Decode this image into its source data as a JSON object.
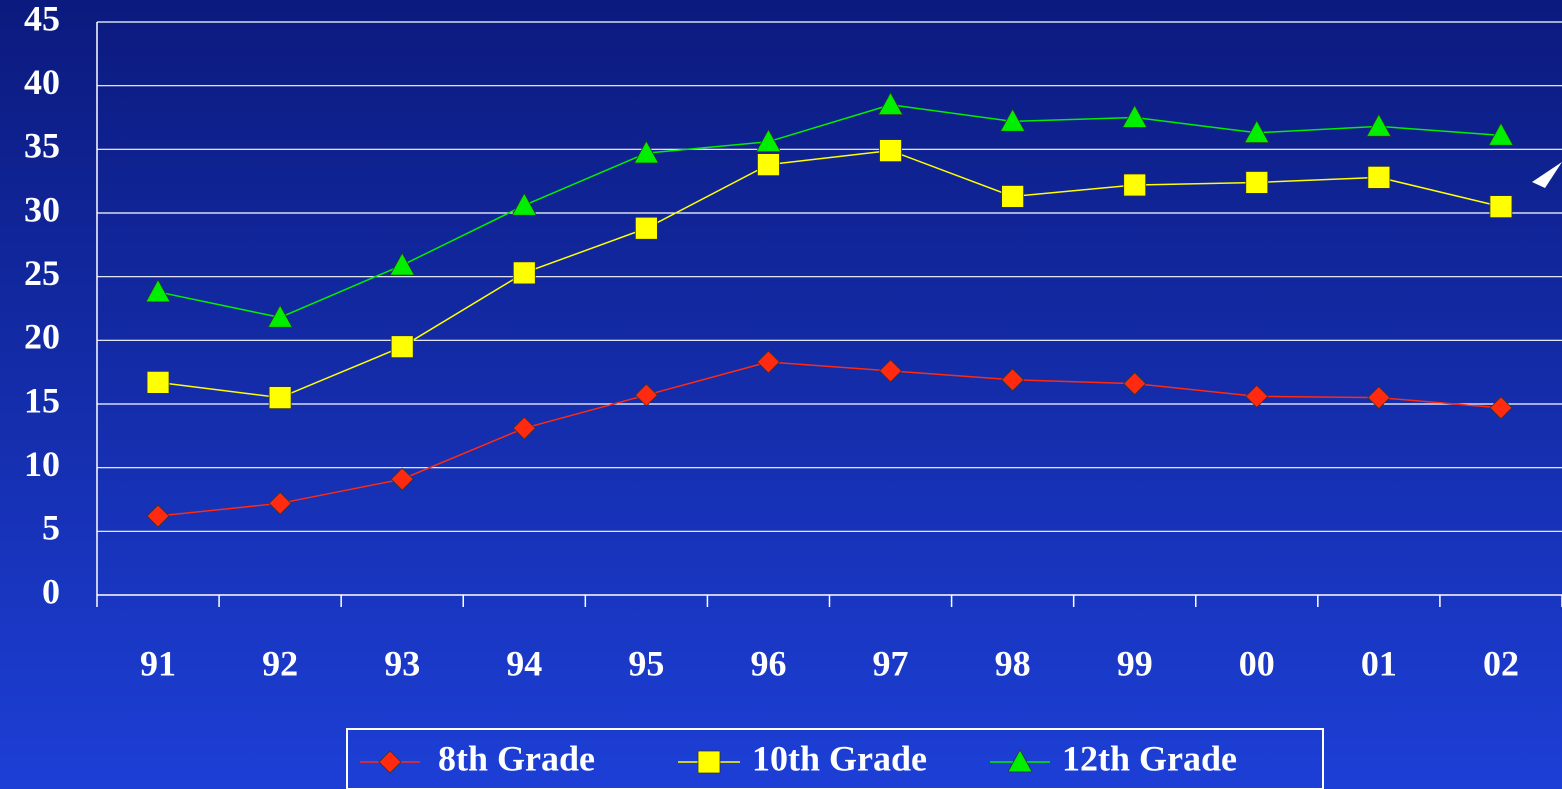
{
  "chart_data": {
    "type": "line",
    "categories": [
      "91",
      "92",
      "93",
      "94",
      "95",
      "96",
      "97",
      "98",
      "99",
      "00",
      "01",
      "02"
    ],
    "series": [
      {
        "name": "8th Grade",
        "color": "#ff2a10",
        "marker": "diamond",
        "values": [
          6.2,
          7.2,
          9.1,
          13.1,
          15.7,
          18.3,
          17.6,
          16.9,
          16.6,
          15.6,
          15.5,
          14.7
        ]
      },
      {
        "name": "10th Grade",
        "color": "#ffff00",
        "marker": "square",
        "values": [
          16.7,
          15.5,
          19.5,
          25.3,
          28.8,
          33.8,
          34.9,
          31.3,
          32.2,
          32.4,
          32.8,
          30.5
        ]
      },
      {
        "name": "12th Grade",
        "color": "#00ee00",
        "marker": "triangle",
        "values": [
          23.8,
          21.8,
          25.9,
          30.6,
          34.7,
          35.6,
          38.5,
          37.2,
          37.5,
          36.3,
          36.8,
          36.1
        ]
      }
    ],
    "ylim": [
      0,
      45
    ],
    "yticks": [
      0,
      5,
      10,
      15,
      20,
      25,
      30,
      35,
      40,
      45
    ],
    "grid": true
  }
}
